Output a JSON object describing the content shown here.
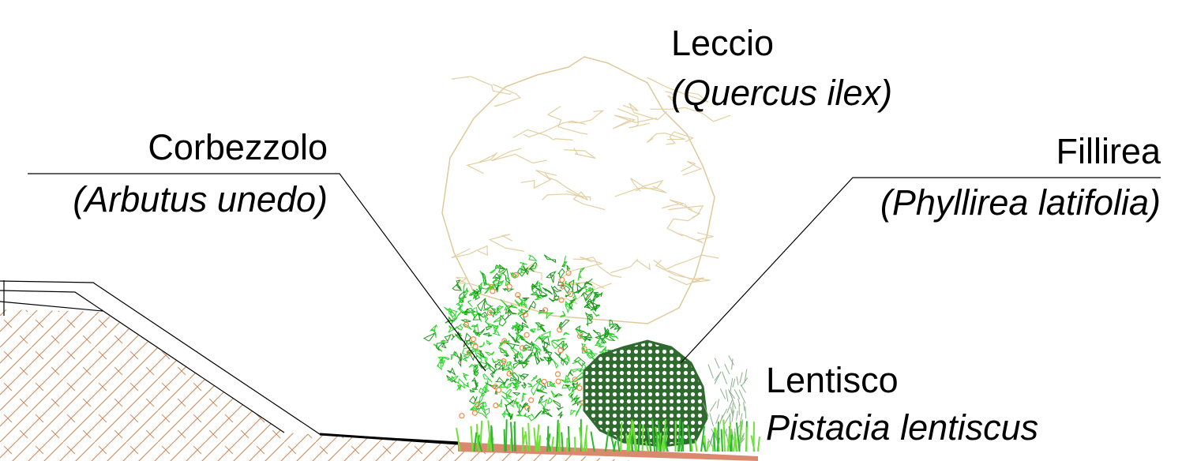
{
  "plants": [
    {
      "common_name": "Leccio",
      "latin_name": "(Quercus ilex)"
    },
    {
      "common_name": "Corbezzolo",
      "latin_name": "(Arbutus unedo)"
    },
    {
      "common_name": "Fillirea",
      "latin_name": "(Phyllirea latifolia)"
    },
    {
      "common_name": "Lentisco",
      "latin_name": "Pistacia lentiscus"
    }
  ]
}
